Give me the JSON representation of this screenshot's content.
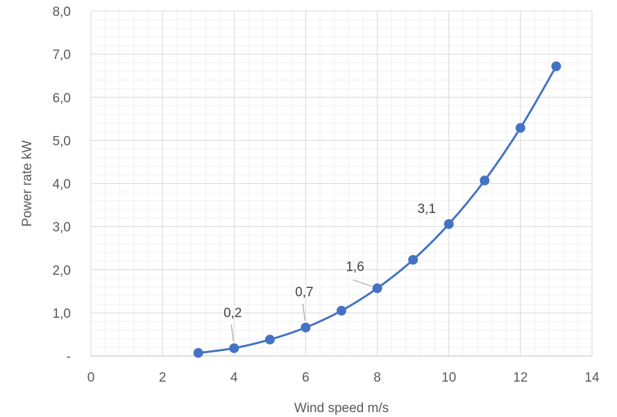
{
  "chart_data": {
    "type": "scatter",
    "title": "",
    "xlabel": "Wind speed m/s",
    "ylabel": "Power rate  kW",
    "xlim": [
      0,
      14
    ],
    "ylim": [
      0,
      8
    ],
    "x_ticks": [
      "0",
      "2",
      "4",
      "6",
      "8",
      "10",
      "12",
      "14"
    ],
    "y_ticks": [
      "-",
      "1,0",
      "2,0",
      "3,0",
      "4,0",
      "5,0",
      "6,0",
      "7,0",
      "8,0"
    ],
    "grid": true,
    "minor_grid": true,
    "smooth_line": true,
    "series_color": "#4472C4",
    "series": [
      {
        "x": [
          3,
          4,
          5,
          6,
          7,
          8,
          9,
          10,
          11,
          12,
          13
        ],
        "y": [
          0.07,
          0.18,
          0.38,
          0.66,
          1.05,
          1.57,
          2.23,
          3.06,
          4.07,
          5.29,
          6.72
        ]
      }
    ],
    "data_labels": [
      {
        "x": 4,
        "y": 0.18,
        "text": "0,2"
      },
      {
        "x": 6,
        "y": 0.66,
        "text": "0,7"
      },
      {
        "x": 8,
        "y": 1.57,
        "text": "1,6"
      },
      {
        "x": 10,
        "y": 3.06,
        "text": "3,1"
      }
    ]
  }
}
